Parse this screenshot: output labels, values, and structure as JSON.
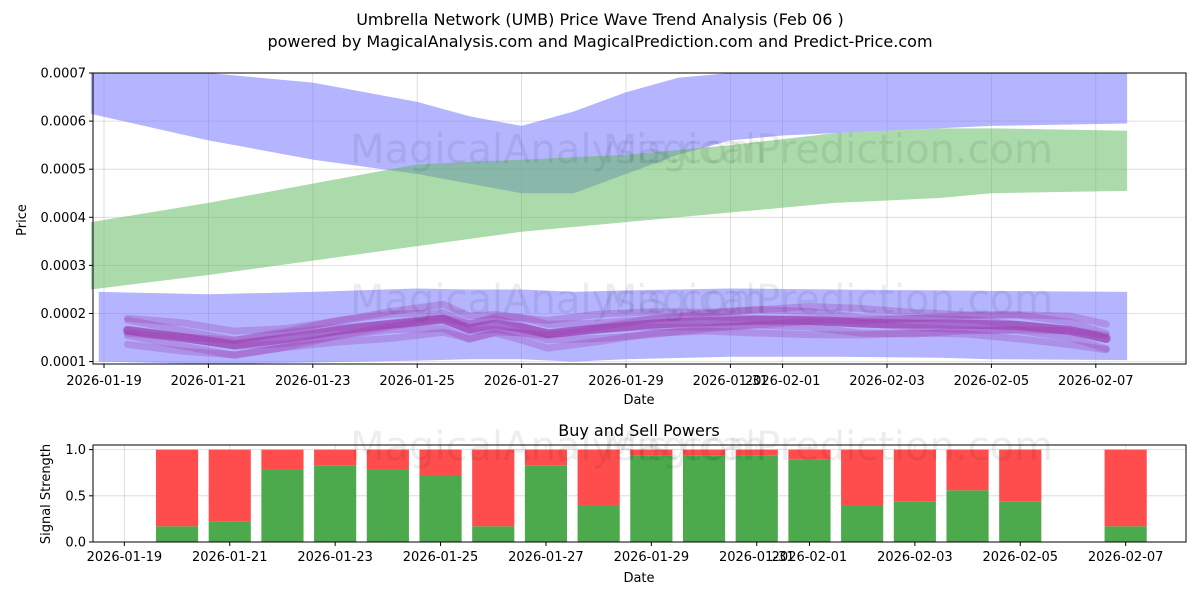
{
  "title": "Umbrella Network (UMB) Price Wave Trend Analysis (Feb 06 )",
  "subtitle": "powered by MagicalAnalysis.com and MagicalPrediction.com and Predict-Price.com",
  "watermarks": [
    "MagicalAnalysis.com",
    "MagicalPrediction.com"
  ],
  "chart_data": [
    {
      "type": "area",
      "name": "price-wave",
      "xlabel": "Date",
      "ylabel": "Price",
      "ylim": [
        9.5e-05,
        0.0007
      ],
      "xlim": [
        "2026-01-18.15",
        "2026-02-08.2"
      ],
      "yticks": [
        0.0001,
        0.0002,
        0.0003,
        0.0004,
        0.0005,
        0.0006,
        0.0007
      ],
      "ytick_labels": [
        "0.0001",
        "0.0002",
        "0.0003",
        "0.0004",
        "0.0005",
        "0.0006",
        "0.0007"
      ],
      "xticks": [
        "2026-01-19",
        "2026-01-21",
        "2026-01-23",
        "2026-01-25",
        "2026-01-27",
        "2026-01-29",
        "2026-01-31",
        "2026-02-01",
        "2026-02-03",
        "2026-02-05",
        "2026-02-07"
      ],
      "grid": true,
      "series": [
        {
          "name": "upper-blue-band",
          "color": "#7777ff",
          "x": [
            -0.25,
            2,
            4,
            6,
            7,
            8,
            9,
            10,
            11,
            12,
            13,
            15,
            17,
            19.6
          ],
          "upper": [
            0.0007,
            0.0007,
            0.00068,
            0.00064,
            0.00061,
            0.00059,
            0.00062,
            0.00066,
            0.00069,
            0.0007,
            0.0007,
            0.0007,
            0.0007,
            0.0007
          ],
          "lower": [
            0.000615,
            0.00056,
            0.00052,
            0.00049,
            0.00047,
            0.00045,
            0.00045,
            0.00049,
            0.00053,
            0.00056,
            0.00057,
            0.00058,
            0.00059,
            0.000595
          ]
        },
        {
          "name": "green-band",
          "color": "#66bb66",
          "x": [
            -0.25,
            2,
            4,
            6,
            8,
            10,
            12,
            14,
            16,
            17,
            19.6
          ],
          "upper": [
            0.00039,
            0.00043,
            0.00047,
            0.00051,
            0.00052,
            0.00053,
            0.00055,
            0.000575,
            0.000585,
            0.000585,
            0.00058
          ],
          "lower": [
            0.00025,
            0.00028,
            0.00031,
            0.00034,
            0.00037,
            0.00039,
            0.00041,
            0.00043,
            0.00044,
            0.00045,
            0.000455
          ]
        },
        {
          "name": "lower-blue-band",
          "color": "#7777ff",
          "x": [
            -0.1,
            2,
            4,
            6,
            7,
            8,
            9,
            10,
            12,
            14,
            16,
            17,
            19.6
          ],
          "upper": [
            0.000245,
            0.00024,
            0.000245,
            0.000252,
            0.00025,
            0.00025,
            0.000245,
            0.000248,
            0.000252,
            0.00025,
            0.000248,
            0.000247,
            0.000245
          ],
          "lower": [
            0.0001,
            9.5e-05,
            9.8e-05,
            0.000102,
            0.000105,
            0.000105,
            0.0001,
            0.000105,
            0.00011,
            0.00011,
            0.000108,
            0.000105,
            0.000103
          ]
        }
      ],
      "wave_lines": {
        "color": "#9933aa",
        "count": 6,
        "x": [
          0.45,
          1.5,
          2.5,
          3.5,
          4.5,
          5.5,
          6.5,
          7.0,
          7.5,
          8.0,
          8.5,
          9.5,
          10.5,
          11.5,
          12.5,
          13.5,
          14.5,
          15.5,
          16.5,
          17.5,
          18.5,
          19.2
        ],
        "base": [
          0.000165,
          0.00015,
          0.000135,
          0.000148,
          0.000165,
          0.000178,
          0.000188,
          0.000168,
          0.000178,
          0.00017,
          0.000158,
          0.000168,
          0.000178,
          0.000183,
          0.000186,
          0.000186,
          0.00018,
          0.000178,
          0.000178,
          0.000175,
          0.000165,
          0.000148
        ],
        "offsets": [
          2.5e-05,
          1.6e-05,
          6e-06,
          -6e-06,
          -1.6e-05,
          -2.4e-05
        ]
      }
    },
    {
      "type": "bar",
      "name": "buy-sell-powers",
      "title": "Buy and Sell Powers",
      "xlabel": "Date",
      "ylabel": "Signal Strength",
      "ylim": [
        0,
        1.05
      ],
      "yticks": [
        0.0,
        0.5,
        1.0
      ],
      "ytick_labels": [
        "0.0",
        "0.5",
        "1.0"
      ],
      "xticks": [
        "2026-01-19",
        "2026-01-21",
        "2026-01-23",
        "2026-01-25",
        "2026-01-27",
        "2026-01-29",
        "2026-01-31",
        "2026-02-01",
        "2026-02-03",
        "2026-02-05",
        "2026-02-07"
      ],
      "grid": true,
      "categories": [
        "2026-01-20",
        "2026-01-21",
        "2026-01-22",
        "2026-01-23",
        "2026-01-24",
        "2026-01-25",
        "2026-01-26",
        "2026-01-27",
        "2026-01-28",
        "2026-01-29",
        "2026-01-30",
        "2026-01-31",
        "2026-02-01",
        "2026-02-02",
        "2026-02-03",
        "2026-02-04",
        "2026-02-05",
        "2026-02-07"
      ],
      "series": [
        {
          "name": "Buy",
          "color": "#4caa4c",
          "values": [
            0.17,
            0.22,
            0.78,
            0.83,
            0.78,
            0.72,
            0.17,
            0.83,
            0.39,
            0.94,
            0.94,
            0.94,
            0.89,
            0.39,
            0.44,
            0.56,
            0.44,
            0.17
          ]
        },
        {
          "name": "Sell",
          "color": "#ff4d4d",
          "values": [
            0.83,
            0.78,
            0.22,
            0.17,
            0.22,
            0.28,
            0.83,
            0.17,
            0.61,
            0.06,
            0.06,
            0.06,
            0.11,
            0.61,
            0.56,
            0.44,
            0.56,
            0.83
          ]
        }
      ]
    }
  ]
}
